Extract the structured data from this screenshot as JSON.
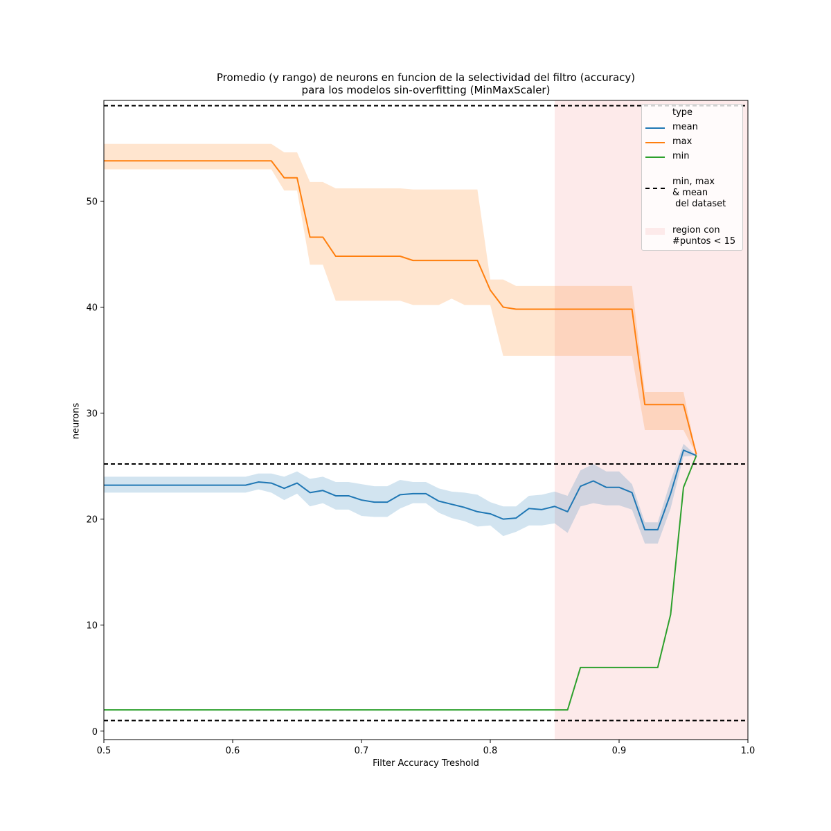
{
  "chart_data": {
    "type": "line",
    "title_line1": "Promedio (y rango) de neurons en funcion de la selectividad del filtro (accuracy)",
    "title_line2": "para los modelos sin-overfitting (MinMaxScaler)",
    "xlabel": "Filter Accuracy Treshold",
    "ylabel": "neurons",
    "xlim": [
      0.5,
      1.0
    ],
    "ylim": [
      -0.8,
      59.5
    ],
    "xticks": [
      "0.5",
      "0.6",
      "0.7",
      "0.8",
      "0.9",
      "1.0"
    ],
    "yticks": [
      "0",
      "10",
      "20",
      "30",
      "40",
      "50"
    ],
    "grid": false,
    "legend_placement": "top-right",
    "legend_title": "type",
    "highlight_region": {
      "x_start": 0.85,
      "x_end": 1.0,
      "color": "#fdeaea",
      "label": "region con\n#puntos < 15"
    },
    "reference_lines": {
      "values": [
        59.0,
        25.2,
        1.0
      ],
      "label": "min, max\n& mean\n del dataset",
      "color": "#000000"
    },
    "series": [
      {
        "name": "mean",
        "color": "#1f77b4",
        "x": [
          0.5,
          0.51,
          0.52,
          0.53,
          0.54,
          0.55,
          0.56,
          0.57,
          0.58,
          0.59,
          0.6,
          0.61,
          0.62,
          0.63,
          0.64,
          0.65,
          0.66,
          0.67,
          0.68,
          0.69,
          0.7,
          0.71,
          0.72,
          0.73,
          0.74,
          0.75,
          0.76,
          0.77,
          0.78,
          0.79,
          0.8,
          0.81,
          0.82,
          0.83,
          0.84,
          0.85,
          0.86,
          0.87,
          0.88,
          0.89,
          0.9,
          0.91,
          0.92,
          0.93,
          0.94,
          0.95,
          0.96
        ],
        "values": [
          23.2,
          23.2,
          23.2,
          23.2,
          23.2,
          23.2,
          23.2,
          23.2,
          23.2,
          23.2,
          23.2,
          23.2,
          23.5,
          23.4,
          22.9,
          23.4,
          22.5,
          22.7,
          22.2,
          22.2,
          21.8,
          21.6,
          21.6,
          22.3,
          22.4,
          22.4,
          21.7,
          21.4,
          21.1,
          20.7,
          20.5,
          20.0,
          20.1,
          21.0,
          20.9,
          21.2,
          20.7,
          23.1,
          23.6,
          23.0,
          23.0,
          22.5,
          19.0,
          19.0,
          22.4,
          26.5,
          26.0
        ],
        "band_low": [
          22.5,
          22.5,
          22.5,
          22.5,
          22.5,
          22.5,
          22.5,
          22.5,
          22.5,
          22.5,
          22.5,
          22.5,
          22.8,
          22.5,
          21.8,
          22.4,
          21.2,
          21.5,
          20.9,
          20.9,
          20.3,
          20.2,
          20.2,
          21.0,
          21.5,
          21.5,
          20.6,
          20.1,
          19.8,
          19.3,
          19.4,
          18.4,
          18.8,
          19.4,
          19.4,
          19.6,
          18.7,
          21.2,
          21.5,
          21.3,
          21.3,
          20.9,
          17.7,
          17.7,
          21.0,
          25.9,
          26.0
        ],
        "band_high": [
          24.0,
          24.0,
          24.0,
          24.0,
          24.0,
          24.0,
          24.0,
          24.0,
          24.0,
          24.0,
          24.0,
          24.0,
          24.3,
          24.3,
          24.0,
          24.5,
          23.8,
          24.0,
          23.5,
          23.5,
          23.3,
          23.1,
          23.1,
          23.7,
          23.5,
          23.5,
          22.9,
          22.6,
          22.5,
          22.3,
          21.6,
          21.2,
          21.2,
          22.2,
          22.3,
          22.6,
          22.2,
          24.6,
          25.2,
          24.5,
          24.5,
          23.3,
          19.7,
          19.7,
          23.6,
          27.1,
          26.0
        ]
      },
      {
        "name": "max",
        "color": "#ff7f0e",
        "x": [
          0.5,
          0.51,
          0.52,
          0.53,
          0.54,
          0.55,
          0.56,
          0.57,
          0.58,
          0.59,
          0.6,
          0.61,
          0.62,
          0.63,
          0.64,
          0.65,
          0.66,
          0.67,
          0.68,
          0.69,
          0.7,
          0.71,
          0.72,
          0.73,
          0.74,
          0.75,
          0.76,
          0.77,
          0.78,
          0.79,
          0.8,
          0.81,
          0.82,
          0.83,
          0.84,
          0.85,
          0.86,
          0.87,
          0.88,
          0.89,
          0.9,
          0.91,
          0.92,
          0.93,
          0.94,
          0.95,
          0.96
        ],
        "values": [
          53.8,
          53.8,
          53.8,
          53.8,
          53.8,
          53.8,
          53.8,
          53.8,
          53.8,
          53.8,
          53.8,
          53.8,
          53.8,
          53.8,
          52.2,
          52.2,
          46.6,
          46.6,
          44.8,
          44.8,
          44.8,
          44.8,
          44.8,
          44.8,
          44.4,
          44.4,
          44.4,
          44.4,
          44.4,
          44.4,
          41.6,
          40.0,
          39.8,
          39.8,
          39.8,
          39.8,
          39.8,
          39.8,
          39.8,
          39.8,
          39.8,
          39.8,
          30.8,
          30.8,
          30.8,
          30.8,
          26.1
        ],
        "band_low": [
          53.0,
          53.0,
          53.0,
          53.0,
          53.0,
          53.0,
          53.0,
          53.0,
          53.0,
          53.0,
          53.0,
          53.0,
          53.0,
          53.0,
          51.0,
          51.0,
          44.0,
          44.0,
          40.6,
          40.6,
          40.6,
          40.6,
          40.6,
          40.6,
          40.2,
          40.2,
          40.2,
          40.8,
          40.2,
          40.2,
          40.2,
          35.4,
          35.4,
          35.4,
          35.4,
          35.4,
          35.4,
          35.4,
          35.4,
          35.4,
          35.4,
          35.4,
          28.4,
          28.4,
          28.4,
          28.4,
          26.1
        ],
        "band_high": [
          55.4,
          55.4,
          55.4,
          55.4,
          55.4,
          55.4,
          55.4,
          55.4,
          55.4,
          55.4,
          55.4,
          55.4,
          55.4,
          55.4,
          54.6,
          54.6,
          51.8,
          51.8,
          51.2,
          51.2,
          51.2,
          51.2,
          51.2,
          51.2,
          51.1,
          51.1,
          51.1,
          51.1,
          51.1,
          51.1,
          42.6,
          42.6,
          42.0,
          42.0,
          42.0,
          42.0,
          42.0,
          42.0,
          42.0,
          42.0,
          42.0,
          42.0,
          32.0,
          32.0,
          32.0,
          32.0,
          26.1
        ]
      },
      {
        "name": "min",
        "color": "#2ca02c",
        "x": [
          0.5,
          0.51,
          0.52,
          0.53,
          0.54,
          0.55,
          0.56,
          0.57,
          0.58,
          0.59,
          0.6,
          0.61,
          0.62,
          0.63,
          0.64,
          0.65,
          0.66,
          0.67,
          0.68,
          0.69,
          0.7,
          0.71,
          0.72,
          0.73,
          0.74,
          0.75,
          0.76,
          0.77,
          0.78,
          0.79,
          0.8,
          0.81,
          0.82,
          0.83,
          0.84,
          0.85,
          0.86,
          0.87,
          0.88,
          0.89,
          0.9,
          0.91,
          0.92,
          0.93,
          0.94,
          0.95,
          0.96
        ],
        "values": [
          2,
          2,
          2,
          2,
          2,
          2,
          2,
          2,
          2,
          2,
          2,
          2,
          2,
          2,
          2,
          2,
          2,
          2,
          2,
          2,
          2,
          2,
          2,
          2,
          2,
          2,
          2,
          2,
          2,
          2,
          2,
          2,
          2,
          2,
          2,
          2,
          2,
          6,
          6,
          6,
          6,
          6,
          6,
          6,
          11,
          23,
          26
        ]
      }
    ]
  }
}
